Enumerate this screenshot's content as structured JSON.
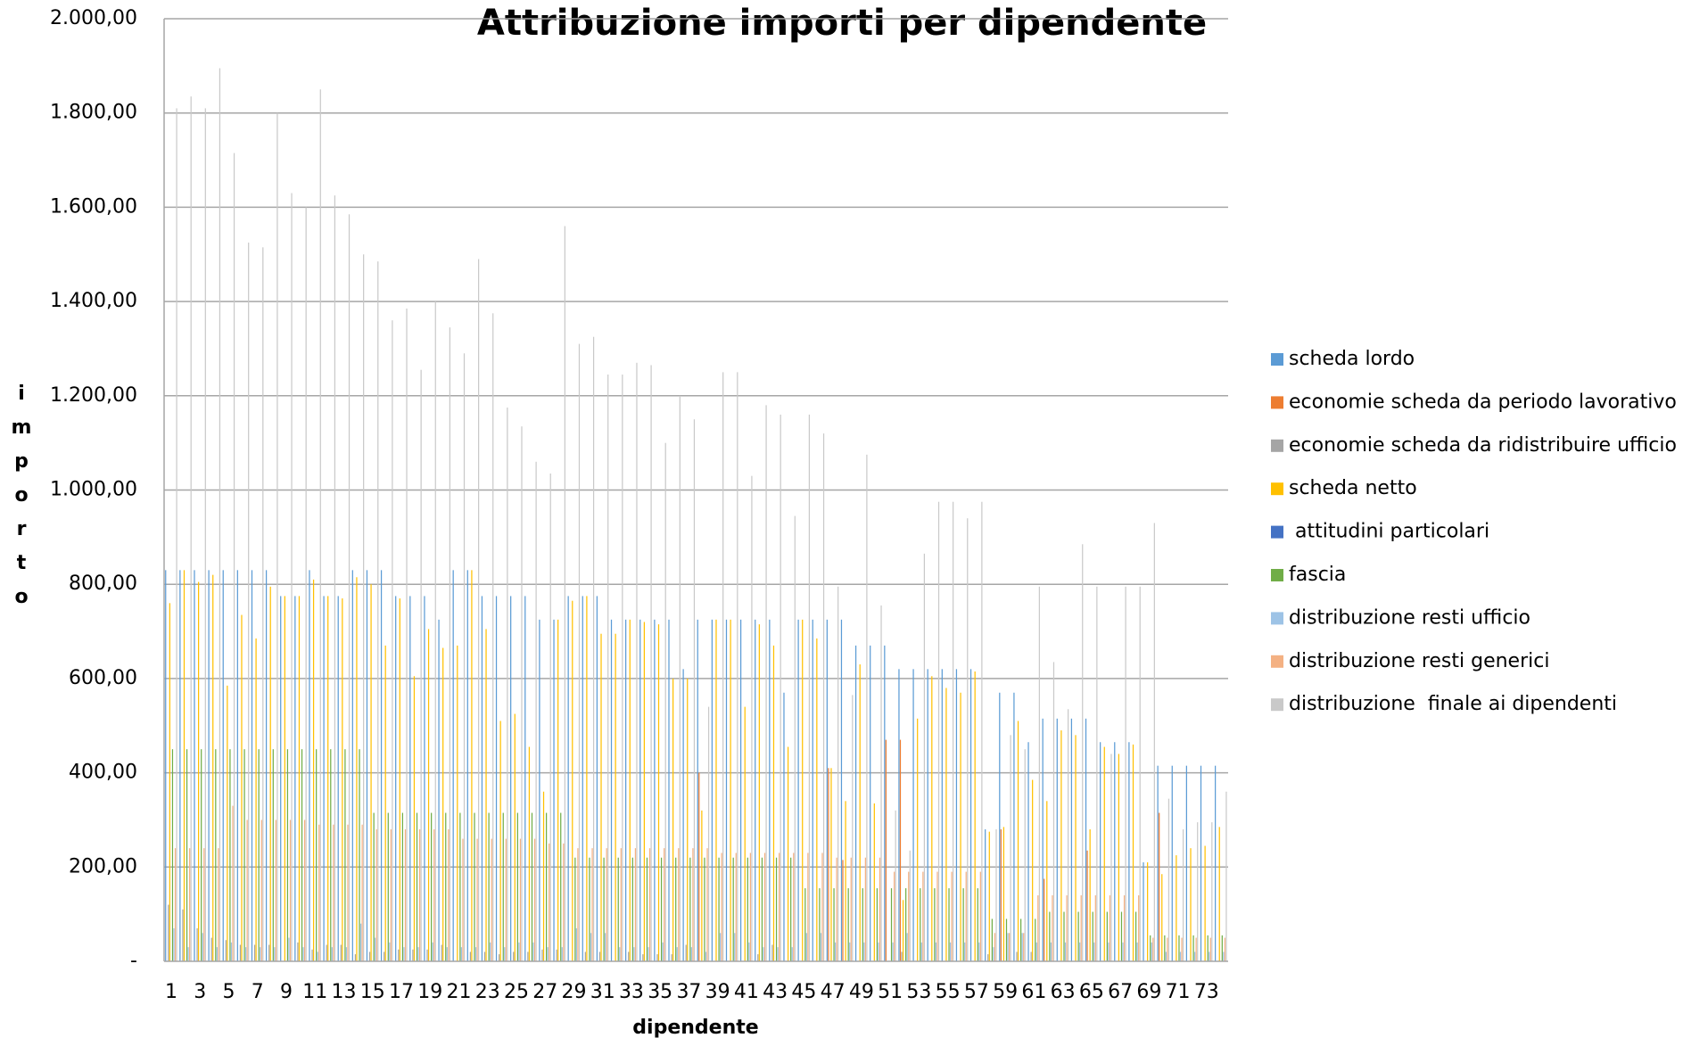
{
  "chart_data": {
    "type": "bar",
    "title": "Attribuzione importi per dipendente",
    "x_label": "dipendente",
    "y_label": "importo",
    "categories": [
      "1",
      null,
      "3",
      null,
      "5",
      null,
      "7",
      null,
      "9",
      null,
      "11",
      null,
      "13",
      null,
      "15",
      null,
      "17",
      null,
      "19",
      null,
      "21",
      null,
      "23",
      null,
      "25",
      null,
      "27",
      null,
      "29",
      null,
      "31",
      null,
      "33",
      null,
      "35",
      null,
      "37",
      null,
      "39",
      null,
      "41",
      null,
      "43",
      null,
      "45",
      null,
      "47",
      null,
      "49",
      null,
      "51",
      null,
      "53",
      null,
      "55",
      null,
      "57",
      null,
      "59",
      null,
      "61",
      null,
      "63",
      null,
      "65",
      null,
      "67",
      null,
      "69",
      null,
      "71",
      null,
      "73",
      null
    ],
    "ylim": [
      0,
      2000
    ],
    "yticks": [
      {
        "value": 0,
        "label": "-"
      },
      {
        "value": 200,
        "label": "200,00"
      },
      {
        "value": 400,
        "label": "400,00"
      },
      {
        "value": 600,
        "label": "600,00"
      },
      {
        "value": 800,
        "label": "800,00"
      },
      {
        "value": 1000,
        "label": "1.000,00"
      },
      {
        "value": 1200,
        "label": "1.200,00"
      },
      {
        "value": 1400,
        "label": "1.400,00"
      },
      {
        "value": 1600,
        "label": "1.600,00"
      },
      {
        "value": 1800,
        "label": "1.800,00"
      },
      {
        "value": 2000,
        "label": "2.000,00"
      }
    ],
    "grid": true,
    "legend": "right",
    "series": [
      {
        "name": "scheda lordo",
        "color": "#5b9bd5",
        "values": [
          830,
          830,
          830,
          830,
          830,
          830,
          830,
          830,
          775,
          775,
          830,
          775,
          775,
          830,
          830,
          830,
          775,
          775,
          775,
          725,
          830,
          830,
          775,
          775,
          775,
          775,
          725,
          725,
          775,
          775,
          775,
          725,
          725,
          725,
          725,
          725,
          620,
          725,
          725,
          725,
          725,
          725,
          725,
          570,
          725,
          725,
          725,
          725,
          670,
          670,
          670,
          620,
          620,
          620,
          620,
          620,
          620,
          280,
          570,
          570,
          465,
          515,
          515,
          515,
          515,
          465,
          465,
          465,
          210,
          415,
          415,
          415,
          415,
          415
        ]
      },
      {
        "name": "economie scheda da periodo lavorativo",
        "color": "#ed7d31",
        "values": [
          0,
          0,
          0,
          0,
          0,
          0,
          0,
          0,
          0,
          0,
          0,
          0,
          0,
          0,
          0,
          0,
          0,
          0,
          0,
          0,
          0,
          0,
          0,
          0,
          0,
          0,
          0,
          0,
          0,
          0,
          0,
          0,
          0,
          0,
          0,
          0,
          0,
          400,
          0,
          0,
          0,
          0,
          0,
          0,
          0,
          0,
          410,
          215,
          0,
          0,
          470,
          470,
          0,
          0,
          0,
          0,
          0,
          0,
          280,
          0,
          0,
          175,
          0,
          0,
          235,
          0,
          0,
          0,
          0,
          315,
          0,
          0,
          0,
          0
        ]
      },
      {
        "name": "economie scheda da ridistribuire ufficio",
        "color": "#a5a5a5",
        "values": [
          120,
          110,
          70,
          50,
          45,
          35,
          35,
          35,
          0,
          40,
          25,
          35,
          35,
          15,
          20,
          20,
          25,
          25,
          25,
          35,
          0,
          20,
          20,
          15,
          20,
          20,
          25,
          25,
          0,
          20,
          20,
          0,
          20,
          15,
          15,
          15,
          35,
          0,
          0,
          0,
          0,
          15,
          35,
          0,
          0,
          0,
          0,
          0,
          0,
          0,
          0,
          20,
          0,
          0,
          0,
          0,
          0,
          15,
          0,
          20,
          20,
          0,
          0,
          0,
          0,
          0,
          0,
          0,
          0,
          0,
          0,
          0,
          0,
          0
        ]
      },
      {
        "name": "scheda netto",
        "color": "#ffc000",
        "values": [
          760,
          830,
          805,
          820,
          585,
          735,
          685,
          795,
          775,
          775,
          810,
          775,
          770,
          815,
          800,
          670,
          770,
          605,
          705,
          665,
          670,
          830,
          705,
          510,
          525,
          455,
          360,
          725,
          765,
          775,
          695,
          695,
          725,
          720,
          715,
          600,
          600,
          320,
          725,
          725,
          540,
          715,
          670,
          455,
          725,
          685,
          410,
          340,
          630,
          335,
          0,
          130,
          515,
          605,
          580,
          570,
          615,
          275,
          285,
          510,
          385,
          340,
          490,
          480,
          280,
          455,
          440,
          460,
          210,
          185,
          225,
          240,
          245,
          285
        ]
      },
      {
        "name": " attitudini particolari",
        "color": "#4472c4",
        "values": [
          0,
          0,
          0,
          0,
          0,
          0,
          0,
          0,
          0,
          0,
          0,
          0,
          0,
          0,
          0,
          0,
          0,
          0,
          0,
          0,
          0,
          0,
          0,
          0,
          0,
          0,
          0,
          0,
          0,
          0,
          0,
          0,
          0,
          0,
          0,
          0,
          0,
          0,
          0,
          0,
          0,
          0,
          0,
          0,
          0,
          0,
          0,
          0,
          0,
          0,
          0,
          0,
          0,
          0,
          0,
          0,
          0,
          0,
          0,
          0,
          0,
          0,
          0,
          0,
          0,
          0,
          0,
          0,
          0,
          0,
          0,
          0,
          0,
          0
        ]
      },
      {
        "name": "fascia",
        "color": "#70ad47",
        "values": [
          450,
          450,
          450,
          450,
          450,
          450,
          450,
          450,
          450,
          450,
          450,
          450,
          450,
          450,
          315,
          315,
          315,
          315,
          315,
          315,
          315,
          315,
          315,
          315,
          315,
          315,
          315,
          315,
          220,
          220,
          220,
          220,
          220,
          220,
          220,
          220,
          220,
          220,
          220,
          220,
          220,
          220,
          220,
          220,
          155,
          155,
          155,
          155,
          155,
          155,
          155,
          155,
          155,
          155,
          155,
          155,
          155,
          90,
          90,
          90,
          90,
          105,
          105,
          105,
          105,
          105,
          105,
          105,
          55,
          55,
          55,
          55,
          55,
          55
        ]
      },
      {
        "name": "distribuzione resti ufficio",
        "color": "#9dc3e6",
        "values": [
          70,
          30,
          60,
          30,
          40,
          30,
          30,
          30,
          50,
          30,
          20,
          30,
          30,
          80,
          50,
          40,
          30,
          30,
          40,
          30,
          30,
          30,
          40,
          30,
          40,
          40,
          30,
          30,
          70,
          60,
          60,
          30,
          30,
          30,
          40,
          30,
          30,
          20,
          60,
          60,
          40,
          30,
          30,
          30,
          60,
          60,
          40,
          40,
          40,
          40,
          40,
          60,
          40,
          40,
          40,
          40,
          40,
          30,
          60,
          60,
          40,
          40,
          40,
          40,
          40,
          40,
          40,
          40,
          40,
          20,
          20,
          20,
          20,
          20
        ]
      },
      {
        "name": "distribuzione resti generici",
        "color": "#f4b183",
        "values": [
          240,
          240,
          240,
          240,
          330,
          300,
          300,
          300,
          300,
          300,
          290,
          290,
          290,
          290,
          280,
          280,
          280,
          280,
          280,
          280,
          260,
          260,
          260,
          260,
          260,
          260,
          250,
          250,
          240,
          240,
          240,
          240,
          240,
          240,
          240,
          240,
          240,
          240,
          230,
          230,
          230,
          230,
          230,
          230,
          230,
          230,
          220,
          220,
          220,
          220,
          190,
          190,
          190,
          190,
          190,
          190,
          190,
          60,
          60,
          60,
          140,
          140,
          140,
          140,
          140,
          140,
          140,
          140,
          50,
          50,
          50,
          50,
          50,
          50
        ]
      },
      {
        "name": "distribuzione  finale ai dipendenti",
        "color": "#c9c9c9",
        "values": [
          1810,
          1835,
          1810,
          1895,
          1715,
          1525,
          1515,
          1800,
          1630,
          1600,
          1850,
          1625,
          1585,
          1500,
          1485,
          1360,
          1385,
          1255,
          1400,
          1345,
          1290,
          1490,
          1375,
          1175,
          1135,
          1060,
          1035,
          1560,
          1310,
          1325,
          1245,
          1245,
          1270,
          1265,
          1100,
          1200,
          1150,
          540,
          1250,
          1250,
          1030,
          1180,
          1160,
          945,
          1160,
          1120,
          795,
          565,
          1075,
          755,
          320,
          235,
          865,
          975,
          975,
          940,
          975,
          280,
          480,
          450,
          795,
          635,
          535,
          885,
          795,
          440,
          795,
          795,
          930,
          345,
          280,
          295,
          295,
          360
        ]
      }
    ]
  }
}
